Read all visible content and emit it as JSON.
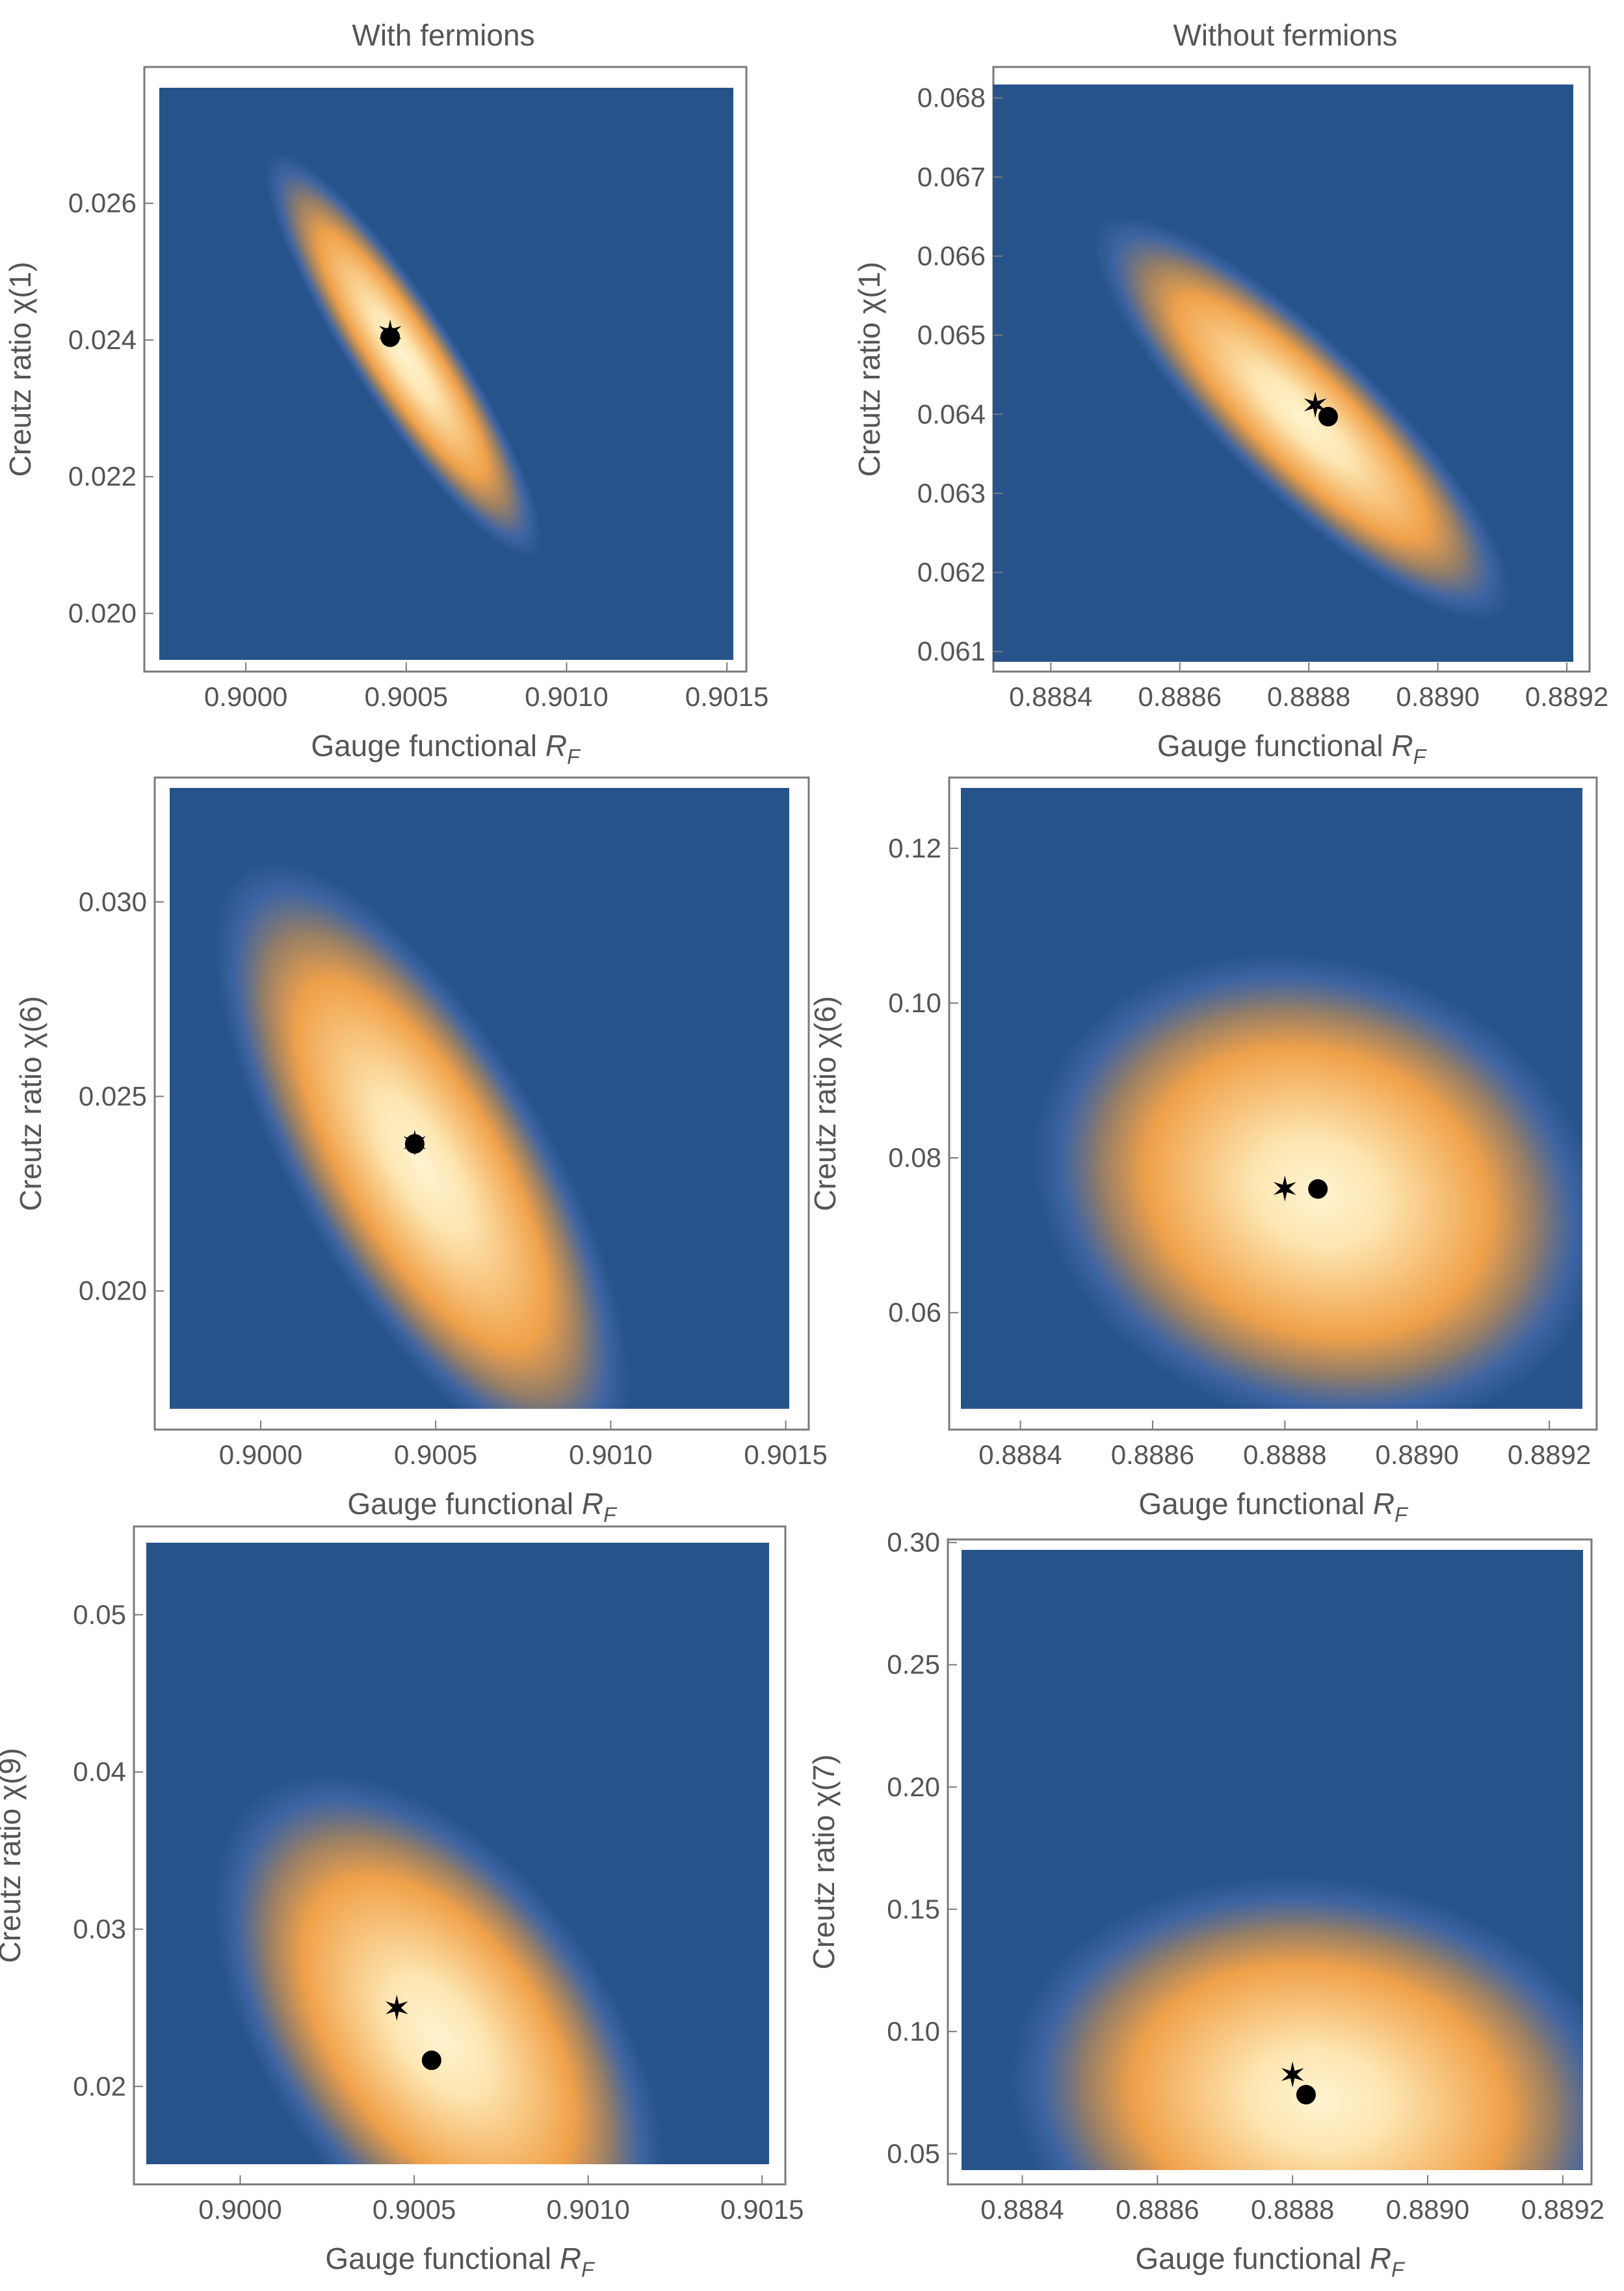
{
  "columns": {
    "left_title": "With fermions",
    "right_title": "Without fermions"
  },
  "colors": {
    "background": "#26538a",
    "glow": "#5a78c0",
    "peak_outer": "#f0a14a",
    "peak_mid": "#f7c27a",
    "peak_core": "#fff3d0",
    "frame": "#7a7a7a",
    "marker": "#000000"
  },
  "chart_data": [
    {
      "type": "heatmap",
      "id": "with-fermions-chi1",
      "column": "With fermions",
      "xlabel": "Gauge functional",
      "xlabel_sub": "F",
      "ylabel": "Creutz ratio χ(1)",
      "xlim": [
        0.89973,
        0.90152
      ],
      "ylim": [
        0.01932,
        0.02769
      ],
      "xticks": [
        {
          "value": 0.9,
          "label": "0.9000"
        },
        {
          "value": 0.9005,
          "label": "0.9005"
        },
        {
          "value": 0.901,
          "label": "0.9010"
        },
        {
          "value": 0.9015,
          "label": "0.9015"
        }
      ],
      "yticks": [
        {
          "value": 0.02,
          "label": "0.020"
        },
        {
          "value": 0.022,
          "label": "0.022"
        },
        {
          "value": 0.024,
          "label": "0.024"
        },
        {
          "value": 0.026,
          "label": "0.026"
        }
      ],
      "density": {
        "center": [
          0.90049,
          0.02378
        ],
        "sigma_x": 0.00016,
        "sigma_y": 0.0011,
        "rho": -0.9
      },
      "star": {
        "x": 0.90045,
        "y": 0.02411
      },
      "dot": {
        "x": 0.90045,
        "y": 0.02404
      }
    },
    {
      "type": "heatmap",
      "id": "without-fermions-chi1",
      "column": "Without fermions",
      "xlabel": "Gauge functional",
      "xlabel_sub": "F",
      "ylabel": "Creutz ratio χ(1)",
      "xlim": [
        0.88831,
        0.88921
      ],
      "ylim": [
        0.06087,
        0.06817
      ],
      "xticks": [
        {
          "value": 0.8884,
          "label": "0.8884"
        },
        {
          "value": 0.8886,
          "label": "0.8886"
        },
        {
          "value": 0.8888,
          "label": "0.8888"
        },
        {
          "value": 0.889,
          "label": "0.8890"
        },
        {
          "value": 0.8892,
          "label": "0.8892"
        }
      ],
      "yticks": [
        {
          "value": 0.061,
          "label": "0.061"
        },
        {
          "value": 0.062,
          "label": "0.062"
        },
        {
          "value": 0.063,
          "label": "0.063"
        },
        {
          "value": 0.064,
          "label": "0.064"
        },
        {
          "value": 0.065,
          "label": "0.065"
        },
        {
          "value": 0.066,
          "label": "0.066"
        },
        {
          "value": 0.067,
          "label": "0.067"
        },
        {
          "value": 0.068,
          "label": "0.068"
        }
      ],
      "density": {
        "center": [
          0.88879,
          0.06395
        ],
        "sigma_x": 0.00012,
        "sigma_y": 0.00095,
        "rho": -0.86
      },
      "star": {
        "x": 0.88881,
        "y": 0.06412
      },
      "dot": {
        "x": 0.88883,
        "y": 0.06397
      }
    },
    {
      "type": "heatmap",
      "id": "with-fermions-chi6",
      "column": "With fermions",
      "xlabel": "Gauge functional",
      "xlabel_sub": "F",
      "ylabel": "Creutz ratio χ(6)",
      "xlim": [
        0.89974,
        0.90151
      ],
      "ylim": [
        0.01697,
        0.03293
      ],
      "xticks": [
        {
          "value": 0.9,
          "label": "0.9000"
        },
        {
          "value": 0.9005,
          "label": "0.9005"
        },
        {
          "value": 0.901,
          "label": "0.9010"
        },
        {
          "value": 0.9015,
          "label": "0.9015"
        }
      ],
      "yticks": [
        {
          "value": 0.02,
          "label": "0.020"
        },
        {
          "value": 0.025,
          "label": "0.025"
        },
        {
          "value": 0.03,
          "label": "0.030"
        }
      ],
      "density": {
        "center": [
          0.90046,
          0.02325
        ],
        "sigma_x": 0.00022,
        "sigma_y": 0.0029,
        "rho": -0.72
      },
      "star": {
        "x": 0.90044,
        "y": 0.02381
      },
      "dot": {
        "x": 0.90044,
        "y": 0.02378
      }
    },
    {
      "type": "heatmap",
      "id": "without-fermions-chi6",
      "column": "Without fermions",
      "xlabel": "Gauge functional",
      "xlabel_sub": "F",
      "ylabel": "Creutz ratio χ(6)",
      "xlim": [
        0.88831,
        0.88925
      ],
      "ylim": [
        0.04758,
        0.1278
      ],
      "xticks": [
        {
          "value": 0.8884,
          "label": "0.8884"
        },
        {
          "value": 0.8886,
          "label": "0.8886"
        },
        {
          "value": 0.8888,
          "label": "0.8888"
        },
        {
          "value": 0.889,
          "label": "0.8890"
        },
        {
          "value": 0.8892,
          "label": "0.8892"
        }
      ],
      "yticks": [
        {
          "value": 0.06,
          "label": "0.06"
        },
        {
          "value": 0.08,
          "label": "0.08"
        },
        {
          "value": 0.1,
          "label": "0.10"
        },
        {
          "value": 0.12,
          "label": "0.12"
        }
      ],
      "density": {
        "center": [
          0.88885,
          0.0755
        ],
        "sigma_x": 0.00016,
        "sigma_y": 0.0115,
        "rho": -0.15
      },
      "star": {
        "x": 0.8888,
        "y": 0.07605
      },
      "dot": {
        "x": 0.88885,
        "y": 0.07598
      }
    },
    {
      "type": "heatmap",
      "id": "with-fermions-chi9",
      "column": "With fermions",
      "xlabel": "Gauge functional",
      "xlabel_sub": "F",
      "ylabel": "Creutz ratio χ(9)",
      "xlim": [
        0.89973,
        0.90152
      ],
      "ylim": [
        0.01505,
        0.05458
      ],
      "xticks": [
        {
          "value": 0.9,
          "label": "0.9000"
        },
        {
          "value": 0.9005,
          "label": "0.9005"
        },
        {
          "value": 0.901,
          "label": "0.9010"
        },
        {
          "value": 0.9015,
          "label": "0.9015"
        }
      ],
      "yticks": [
        {
          "value": 0.02,
          "label": "0.02"
        },
        {
          "value": 0.03,
          "label": "0.03"
        },
        {
          "value": 0.04,
          "label": "0.04"
        },
        {
          "value": 0.05,
          "label": "0.05"
        }
      ],
      "density": {
        "center": [
          0.90057,
          0.0232
        ],
        "sigma_x": 0.00024,
        "sigma_y": 0.0062,
        "rho": -0.5
      },
      "star": {
        "x": 0.90045,
        "y": 0.025
      },
      "dot": {
        "x": 0.90055,
        "y": 0.02166
      }
    },
    {
      "type": "heatmap",
      "id": "without-fermions-chi7",
      "column": "Without fermions",
      "xlabel": "Gauge functional",
      "xlabel_sub": "F",
      "ylabel": "Creutz ratio χ(7)",
      "xlim": [
        0.88831,
        0.88923
      ],
      "ylim": [
        0.0433,
        0.297
      ],
      "xticks": [
        {
          "value": 0.8884,
          "label": "0.8884"
        },
        {
          "value": 0.8886,
          "label": "0.8886"
        },
        {
          "value": 0.8888,
          "label": "0.8888"
        },
        {
          "value": 0.889,
          "label": "0.8890"
        },
        {
          "value": 0.8892,
          "label": "0.8892"
        }
      ],
      "yticks": [
        {
          "value": 0.05,
          "label": "0.05"
        },
        {
          "value": 0.1,
          "label": "0.10"
        },
        {
          "value": 0.15,
          "label": "0.15"
        },
        {
          "value": 0.2,
          "label": "0.20"
        },
        {
          "value": 0.25,
          "label": "0.25"
        },
        {
          "value": 0.3,
          "label": "0.30"
        }
      ],
      "density": {
        "center": [
          0.88884,
          0.072
        ],
        "sigma_x": 0.00017,
        "sigma_y": 0.034,
        "rho": -0.1
      },
      "star": {
        "x": 0.8888,
        "y": 0.08238
      },
      "dot": {
        "x": 0.88882,
        "y": 0.07415
      }
    }
  ]
}
